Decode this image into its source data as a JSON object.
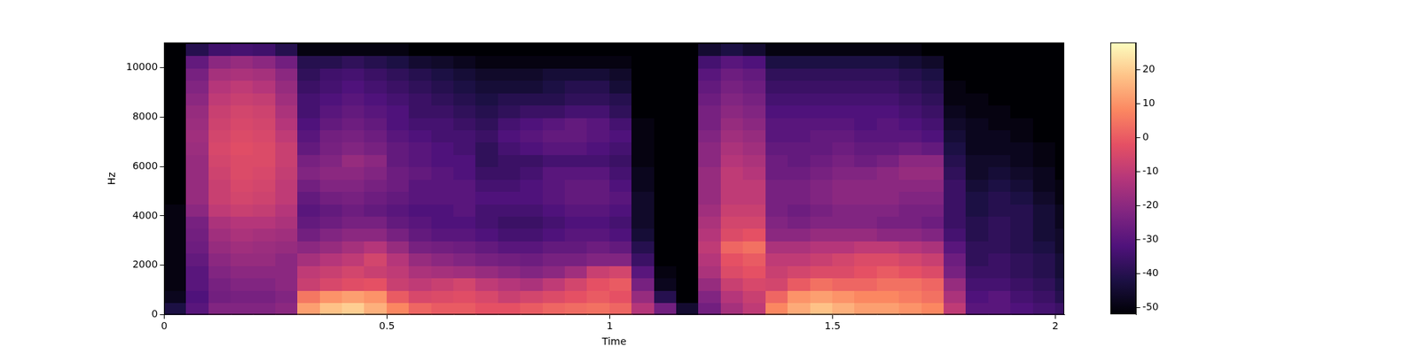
{
  "chart_data": {
    "type": "heatmap",
    "x_label": "Time",
    "y_label": "Hz",
    "color": "magma",
    "grid": false,
    "xlim": [
      0,
      2.02
    ],
    "ylim": [
      0,
      11025
    ],
    "xticks": [
      0,
      0.5,
      1,
      1.5,
      2
    ],
    "yticks": [
      0,
      2000,
      4000,
      6000,
      8000,
      10000
    ],
    "x_edges": [
      0,
      0.05,
      0.1,
      0.15,
      0.2,
      0.25,
      0.3,
      0.35,
      0.4,
      0.45,
      0.5,
      0.55,
      0.6,
      0.65,
      0.7,
      0.75,
      0.8,
      0.85,
      0.9,
      0.95,
      1,
      1.05,
      1.1,
      1.15,
      1.2,
      1.25,
      1.3,
      1.35,
      1.4,
      1.45,
      1.5,
      1.55,
      1.6,
      1.65,
      1.7,
      1.75,
      1.8,
      1.85,
      1.9,
      1.95,
      2,
      2.02
    ],
    "y_edges": [
      0,
      500,
      1000,
      1500,
      2000,
      2500,
      3000,
      3500,
      4000,
      4500,
      5000,
      5500,
      6000,
      6500,
      7000,
      7500,
      8000,
      8500,
      9000,
      9500,
      10000,
      10500,
      11000,
      11025
    ],
    "cells": [
      [
        -42,
        -48,
        -50,
        -50,
        -50,
        -50,
        -50,
        -50,
        -50,
        -52,
        -52,
        -52,
        -52,
        -52,
        -52,
        -52,
        -52,
        -52,
        -52,
        -52,
        -52,
        -52,
        -52
      ],
      [
        -30,
        -32,
        -30,
        -30,
        -28,
        -26,
        -25,
        -24,
        -20,
        -18,
        -18,
        -18,
        -18,
        -17,
        -16,
        -17,
        -18,
        -20,
        -22,
        -24,
        -28,
        -40,
        -52
      ],
      [
        -22,
        -25,
        -24,
        -22,
        -20,
        -18,
        -16,
        -14,
        -10,
        -8,
        -8,
        -7,
        -6,
        -5,
        -6,
        -7,
        -8,
        -10,
        -12,
        -15,
        -20,
        -35,
        -52
      ],
      [
        -22,
        -24,
        -22,
        -20,
        -18,
        -16,
        -14,
        -12,
        -8,
        -6,
        -5,
        -4,
        -4,
        -3,
        -4,
        -5,
        -6,
        -8,
        -10,
        -14,
        -18,
        -34,
        -52
      ],
      [
        -22,
        -24,
        -22,
        -20,
        -18,
        -17,
        -15,
        -12,
        -9,
        -7,
        -6,
        -5,
        -4,
        -4,
        -5,
        -6,
        -7,
        -9,
        -12,
        -15,
        -20,
        -35,
        -52
      ],
      [
        -20,
        -22,
        -20,
        -20,
        -20,
        -18,
        -16,
        -14,
        -12,
        -10,
        -10,
        -9,
        -8,
        -8,
        -10,
        -12,
        -14,
        -16,
        -18,
        -20,
        -25,
        -40,
        -52
      ],
      [
        12,
        5,
        -8,
        -10,
        -15,
        -20,
        -25,
        -28,
        -30,
        -28,
        -25,
        -22,
        -24,
        -28,
        -30,
        -32,
        -34,
        -34,
        -36,
        -38,
        -40,
        -50,
        -52
      ],
      [
        18,
        10,
        -5,
        -8,
        -12,
        -18,
        -22,
        -26,
        -28,
        -25,
        -22,
        -20,
        -22,
        -24,
        -25,
        -28,
        -30,
        -32,
        -34,
        -35,
        -40,
        -50,
        -52
      ],
      [
        20,
        12,
        -3,
        -6,
        -10,
        -15,
        -20,
        -24,
        -26,
        -24,
        -22,
        -20,
        -18,
        -22,
        -24,
        -26,
        -28,
        -30,
        -32,
        -34,
        -38,
        -50,
        -52
      ],
      [
        15,
        10,
        -2,
        -8,
        -6,
        -12,
        -20,
        -24,
        -28,
        -26,
        -24,
        -22,
        -20,
        -24,
        -26,
        -28,
        -30,
        -32,
        -34,
        -36,
        -40,
        -50,
        -52
      ],
      [
        8,
        0,
        -8,
        -10,
        -12,
        -18,
        -24,
        -28,
        -30,
        -28,
        -26,
        -26,
        -28,
        -28,
        -30,
        -32,
        -32,
        -34,
        -36,
        -38,
        -42,
        -50,
        -52
      ],
      [
        2,
        -5,
        -10,
        -14,
        -18,
        -24,
        -28,
        -30,
        -32,
        -30,
        -30,
        -28,
        -30,
        -30,
        -32,
        -34,
        -36,
        -36,
        -38,
        -40,
        -45,
        -52,
        -52
      ],
      [
        0,
        -4,
        -8,
        -15,
        -20,
        -25,
        -30,
        -32,
        -32,
        -30,
        -30,
        -30,
        -32,
        -32,
        -34,
        -34,
        -36,
        -38,
        -40,
        -42,
        -46,
        -52,
        -52
      ],
      [
        0,
        -3,
        -6,
        -16,
        -22,
        -26,
        -30,
        -32,
        -30,
        -30,
        -30,
        -32,
        -32,
        -34,
        -34,
        -36,
        -38,
        -40,
        -42,
        -44,
        -48,
        -52,
        -52
      ],
      [
        -2,
        -5,
        -10,
        -18,
        -24,
        -28,
        -32,
        -34,
        -34,
        -32,
        -34,
        -36,
        -38,
        -38,
        -36,
        -38,
        -40,
        -42,
        -44,
        -46,
        -50,
        -52,
        -52
      ],
      [
        -2,
        -8,
        -12,
        -20,
        -25,
        -30,
        -34,
        -36,
        -34,
        -32,
        -34,
        -36,
        -36,
        -34,
        -32,
        -34,
        -38,
        -40,
        -44,
        -46,
        -50,
        -52,
        -52
      ],
      [
        0,
        -6,
        -14,
        -22,
        -26,
        -30,
        -34,
        -36,
        -34,
        -32,
        -32,
        -34,
        -36,
        -32,
        -30,
        -32,
        -36,
        -40,
        -44,
        -46,
        -50,
        -52,
        -52
      ],
      [
        2,
        -4,
        -10,
        -20,
        -24,
        -28,
        -32,
        -34,
        -32,
        -30,
        -30,
        -30,
        -34,
        -30,
        -28,
        -30,
        -36,
        -40,
        -42,
        -44,
        -50,
        -52,
        -52
      ],
      [
        3,
        -2,
        -6,
        -16,
        -24,
        -28,
        -30,
        -32,
        -30,
        -28,
        -28,
        -30,
        -34,
        -30,
        -28,
        -28,
        -34,
        -38,
        -40,
        -44,
        -50,
        -52,
        -52
      ],
      [
        4,
        0,
        -2,
        -8,
        -22,
        -26,
        -30,
        -32,
        -30,
        -28,
        -28,
        -30,
        -34,
        -32,
        -30,
        -30,
        -34,
        -38,
        -40,
        -44,
        -50,
        -52,
        -52
      ],
      [
        2,
        -2,
        0,
        -6,
        -22,
        -28,
        -32,
        -34,
        -32,
        -30,
        -32,
        -34,
        -36,
        -34,
        -32,
        -34,
        -38,
        -40,
        -44,
        -46,
        -50,
        -52,
        -52
      ],
      [
        -12,
        -18,
        -24,
        -30,
        -36,
        -40,
        -44,
        -46,
        -46,
        -46,
        -48,
        -48,
        -50,
        -50,
        -50,
        -50,
        -52,
        -52,
        -52,
        -52,
        -52,
        -52,
        -52
      ],
      [
        -25,
        -40,
        -48,
        -50,
        -52,
        -52,
        -52,
        -52,
        -52,
        -52,
        -52,
        -52,
        -52,
        -52,
        -52,
        -52,
        -52,
        -52,
        -52,
        -52,
        -52,
        -52,
        -52
      ],
      [
        -45,
        -52,
        -52,
        -52,
        -52,
        -52,
        -52,
        -52,
        -52,
        -52,
        -52,
        -52,
        -52,
        -52,
        -52,
        -52,
        -52,
        -52,
        -52,
        -52,
        -52,
        -52,
        -52
      ],
      [
        -25,
        -22,
        -18,
        -14,
        -12,
        -10,
        -12,
        -14,
        -16,
        -18,
        -18,
        -18,
        -20,
        -20,
        -22,
        -24,
        -24,
        -26,
        -28,
        -30,
        -34,
        -45,
        -52
      ],
      [
        -15,
        -12,
        -8,
        -4,
        -2,
        2,
        -4,
        -6,
        -8,
        -10,
        -10,
        -10,
        -12,
        -14,
        -16,
        -18,
        -20,
        -22,
        -24,
        -26,
        -30,
        -42,
        -52
      ],
      [
        -10,
        -8,
        -5,
        -2,
        0,
        4,
        -2,
        -6,
        -8,
        -10,
        -10,
        -12,
        -14,
        -16,
        -18,
        -20,
        -22,
        -24,
        -26,
        -28,
        -32,
        -45,
        -52
      ],
      [
        8,
        2,
        -6,
        -8,
        -10,
        -14,
        -20,
        -22,
        -24,
        -24,
        -24,
        -26,
        -26,
        -28,
        -30,
        -30,
        -32,
        -34,
        -36,
        -38,
        -42,
        -50,
        -52
      ],
      [
        14,
        10,
        0,
        -6,
        -10,
        -14,
        -20,
        -24,
        -26,
        -24,
        -24,
        -26,
        -28,
        -28,
        -30,
        -30,
        -32,
        -34,
        -36,
        -38,
        -42,
        -50,
        -52
      ],
      [
        18,
        12,
        4,
        -4,
        -8,
        -12,
        -18,
        -22,
        -24,
        -22,
        -22,
        -24,
        -26,
        -28,
        -28,
        -30,
        -32,
        -34,
        -36,
        -38,
        -42,
        -50,
        -52
      ],
      [
        15,
        10,
        2,
        -4,
        -6,
        -12,
        -18,
        -22,
        -22,
        -20,
        -20,
        -22,
        -24,
        -26,
        -28,
        -30,
        -32,
        -34,
        -36,
        -38,
        -42,
        -50,
        -52
      ],
      [
        12,
        8,
        2,
        -2,
        -4,
        -10,
        -18,
        -22,
        -22,
        -20,
        -20,
        -22,
        -26,
        -28,
        -30,
        -32,
        -32,
        -34,
        -36,
        -38,
        -42,
        -50,
        -52
      ],
      [
        12,
        8,
        4,
        0,
        -4,
        -10,
        -20,
        -24,
        -22,
        -20,
        -20,
        -20,
        -24,
        -28,
        -30,
        -30,
        -32,
        -34,
        -36,
        -38,
        -42,
        -50,
        -52
      ],
      [
        10,
        6,
        4,
        -2,
        -6,
        -12,
        -20,
        -24,
        -24,
        -22,
        -20,
        -18,
        -20,
        -26,
        -30,
        -32,
        -34,
        -36,
        -38,
        -40,
        -44,
        -50,
        -52
      ],
      [
        8,
        4,
        2,
        -4,
        -8,
        -14,
        -22,
        -26,
        -24,
        -22,
        -20,
        -18,
        -20,
        -28,
        -32,
        -34,
        -36,
        -38,
        -40,
        -42,
        -46,
        -52,
        -52
      ],
      [
        -10,
        -14,
        -18,
        -24,
        -26,
        -30,
        -34,
        -36,
        -36,
        -36,
        -36,
        -38,
        -40,
        -42,
        -44,
        -46,
        -48,
        -50,
        -50,
        -52,
        -52,
        -52,
        -52
      ],
      [
        -30,
        -32,
        -34,
        -36,
        -38,
        -38,
        -40,
        -40,
        -42,
        -42,
        -44,
        -46,
        -46,
        -48,
        -48,
        -48,
        -50,
        -50,
        -52,
        -52,
        -52,
        -52,
        -52
      ],
      [
        -30,
        -30,
        -34,
        -36,
        -36,
        -38,
        -38,
        -38,
        -40,
        -40,
        -42,
        -44,
        -46,
        -48,
        -48,
        -50,
        -50,
        -52,
        -52,
        -52,
        -52,
        -52,
        -52
      ],
      [
        -32,
        -34,
        -36,
        -38,
        -38,
        -40,
        -40,
        -40,
        -40,
        -42,
        -44,
        -46,
        -48,
        -48,
        -50,
        -50,
        -52,
        -52,
        -52,
        -52,
        -52,
        -52,
        -52
      ],
      [
        -34,
        -36,
        -38,
        -40,
        -40,
        -42,
        -44,
        -44,
        -44,
        -46,
        -48,
        -48,
        -50,
        -50,
        -52,
        -52,
        -52,
        -52,
        -52,
        -52,
        -52,
        -52,
        -52
      ],
      [
        -36,
        -40,
        -42,
        -44,
        -44,
        -46,
        -46,
        -48,
        -48,
        -50,
        -50,
        -52,
        -52,
        -52,
        -52,
        -52,
        -52,
        -52,
        -52,
        -52,
        -52,
        -52,
        -52
      ]
    ],
    "colorbar": {
      "lim": [
        -52,
        28
      ],
      "ticks": [
        -50,
        -40,
        -30,
        -20,
        -10,
        0,
        10,
        20
      ]
    }
  }
}
